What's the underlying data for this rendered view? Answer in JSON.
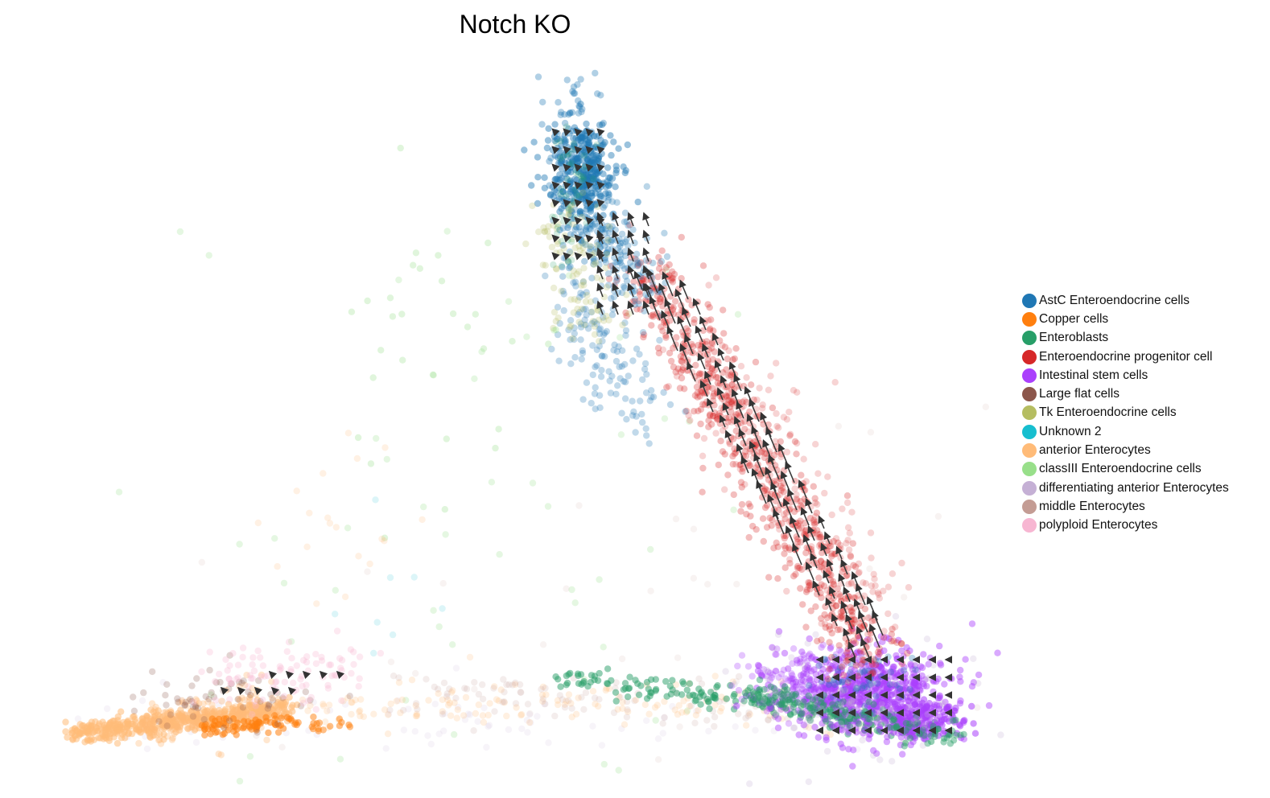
{
  "chart_data": {
    "type": "scatter",
    "title": "Notch KO",
    "xlabel": "",
    "ylabel": "",
    "grid": false,
    "axes_visible": false,
    "legend_position": "right",
    "overlay": "velocity-arrows",
    "series": [
      {
        "name": "AstC Enteroendocrine cells",
        "color": "#1f77b4"
      },
      {
        "name": "Copper cells",
        "color": "#ff7f0e"
      },
      {
        "name": "Enteroblasts",
        "color": "#279e68"
      },
      {
        "name": "Enteroendocrine progenitor cell",
        "color": "#d62728"
      },
      {
        "name": "Intestinal stem cells",
        "color": "#aa40fc"
      },
      {
        "name": "Large flat cells",
        "color": "#8c564b"
      },
      {
        "name": "Tk Enteroendocrine cells",
        "color": "#b5bd61"
      },
      {
        "name": "Unknown 2",
        "color": "#17becf"
      },
      {
        "name": "anterior Enterocytes",
        "color": "#ffbb78"
      },
      {
        "name": "classIII Enteroendocrine cells",
        "color": "#98df8a"
      },
      {
        "name": "differentiating anterior Enterocytes",
        "color": "#c5b0d5"
      },
      {
        "name": "middle Enterocytes",
        "color": "#c49c94"
      },
      {
        "name": "polyploid Enterocytes",
        "color": "#f7b6d2"
      }
    ]
  }
}
